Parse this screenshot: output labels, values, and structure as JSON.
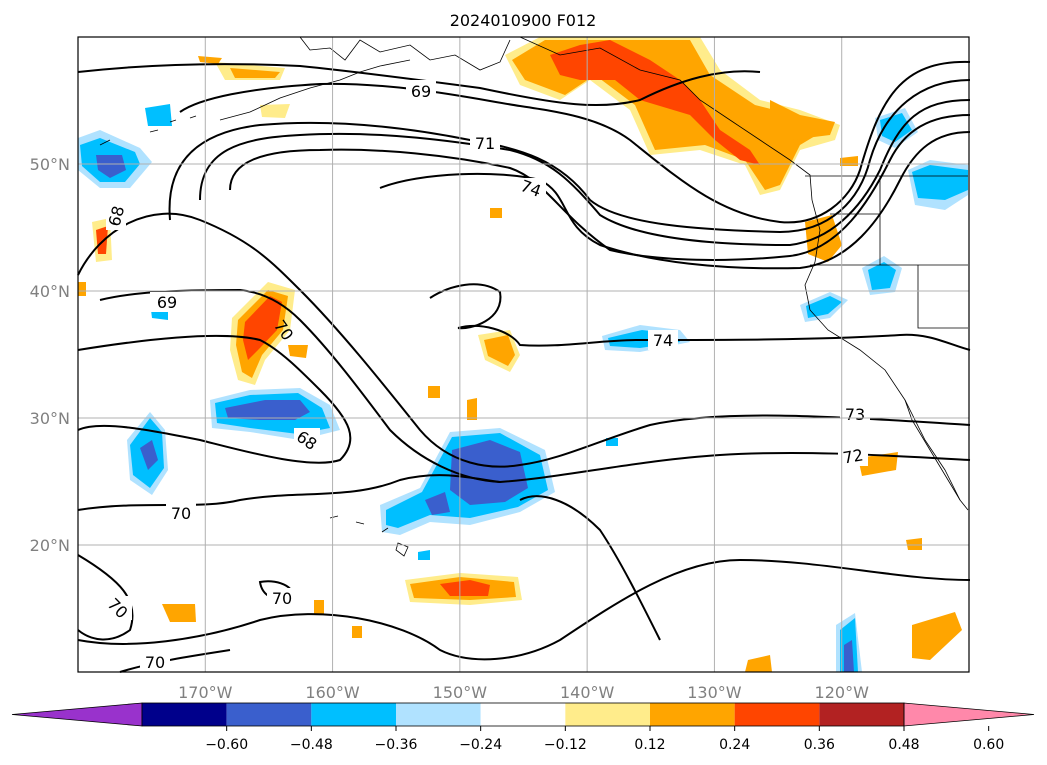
{
  "title": "2024010900 F012",
  "map": {
    "lon_range": [
      -180,
      -110
    ],
    "lat_range": [
      10,
      60
    ],
    "lon_ticks": [
      {
        "lon": -170,
        "label": "170°W"
      },
      {
        "lon": -160,
        "label": "160°W"
      },
      {
        "lon": -150,
        "label": "150°W"
      },
      {
        "lon": -140,
        "label": "140°W"
      },
      {
        "lon": -130,
        "label": "130°W"
      },
      {
        "lon": -120,
        "label": "120°W"
      }
    ],
    "lat_ticks": [
      {
        "lat": 50,
        "label": "50°N"
      },
      {
        "lat": 40,
        "label": "40°N"
      },
      {
        "lat": 30,
        "label": "30°N"
      },
      {
        "lat": 20,
        "label": "20°N"
      }
    ],
    "grid": true
  },
  "contour_labels": [
    "69",
    "71",
    "74",
    "68",
    "69",
    "70",
    "68",
    "74",
    "73",
    "72",
    "70",
    "70",
    "70",
    "70"
  ],
  "colorbar": {
    "levels": [
      "−0.60",
      "−0.48",
      "−0.36",
      "−0.24",
      "−0.12",
      "0.12",
      "0.24",
      "0.36",
      "0.48",
      "0.60"
    ],
    "colors": [
      "#9932cc",
      "#00008b",
      "#3a5fcd",
      "#00bfff",
      "#b0e2ff",
      "#ffffff",
      "#ffec8b",
      "#ffa500",
      "#ff4500",
      "#b22222",
      "#ff88aa"
    ],
    "extend": "both"
  }
}
